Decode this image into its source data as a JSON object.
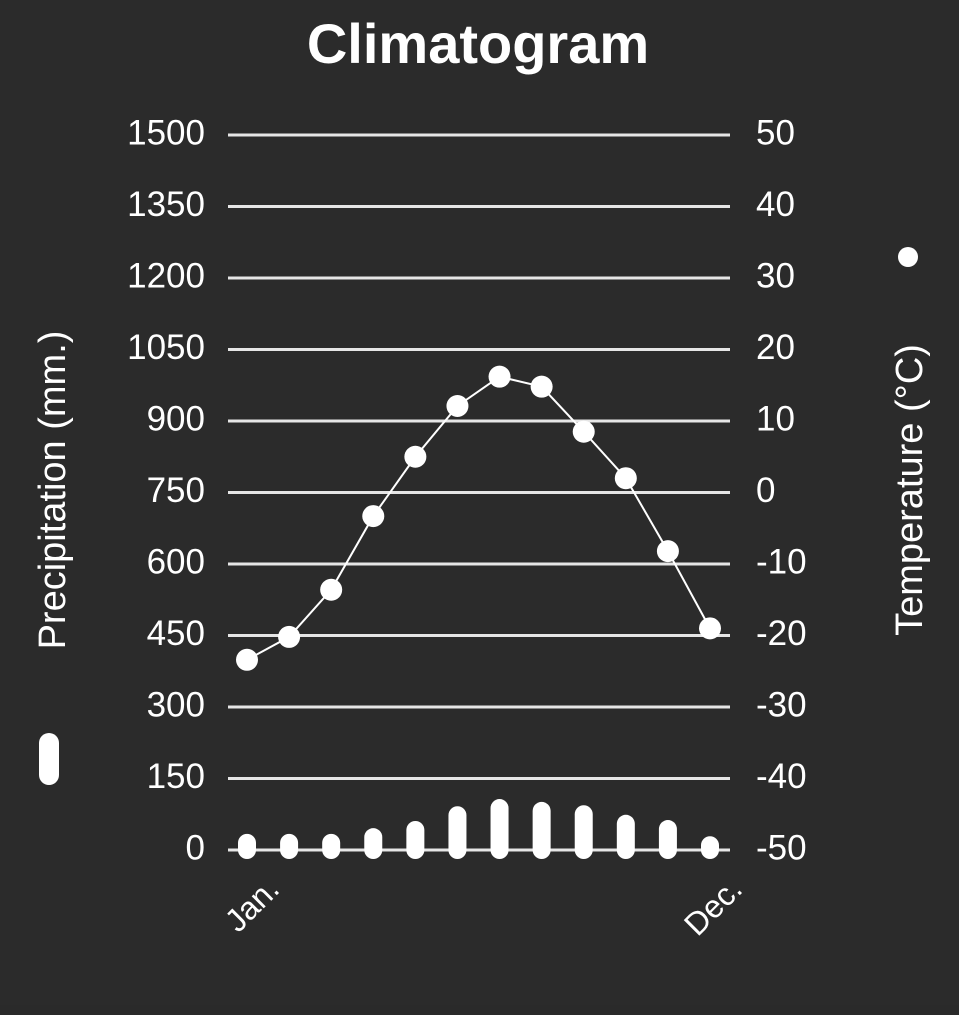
{
  "chart_data": {
    "type": "combo",
    "title": "Climatogram",
    "ylabel": "Precipitation (mm.)",
    "y2label": "Temperature (°C)",
    "categories": [
      "Jan.",
      null,
      null,
      null,
      null,
      null,
      null,
      null,
      null,
      null,
      null,
      "Dec."
    ],
    "series": [
      {
        "type": "bar",
        "axis": "y",
        "color": "#ffffff",
        "values": [
          15,
          15,
          15,
          27,
          42,
          73,
          88,
          82,
          75,
          55,
          44,
          10
        ]
      },
      {
        "type": "line",
        "axis": "y2",
        "color": "#ffffff",
        "values": [
          -23.4,
          -20.2,
          -13.6,
          -3.3,
          5.0,
          12.1,
          16.2,
          14.8,
          8.5,
          2.0,
          -8.2,
          -19.0
        ]
      }
    ],
    "ylim": [
      0,
      1500
    ],
    "yticks": [
      0,
      150,
      300,
      450,
      600,
      750,
      900,
      1050,
      1200,
      1350,
      1500
    ],
    "y2lim": [
      -50,
      50
    ],
    "y2ticks": [
      -50,
      -40,
      -30,
      -20,
      -10,
      0,
      10,
      20,
      30,
      40,
      50
    ],
    "grid": true
  }
}
